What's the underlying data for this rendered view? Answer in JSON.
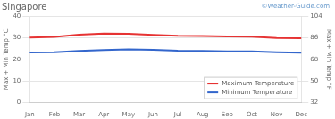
{
  "chart_data": {
    "type": "line",
    "title": "Singapore",
    "annotations": [
      "©Weather-Guide.com"
    ],
    "ylabel": "Max + Min Temp °C",
    "y2label": "Max + Min Temp °F",
    "categories": [
      "Jan",
      "Feb",
      "Mar",
      "Apr",
      "May",
      "Jun",
      "Jul",
      "Aug",
      "Sep",
      "Oct",
      "Nov",
      "Dec"
    ],
    "series": [
      {
        "name": "Maximum Temperature",
        "color": "#e63333",
        "values": [
          30.1,
          30.4,
          31.4,
          31.9,
          31.8,
          31.3,
          30.9,
          30.8,
          30.6,
          30.5,
          29.9,
          29.8
        ]
      },
      {
        "name": "Minimum Temperature",
        "color": "#3366cc",
        "values": [
          23.2,
          23.3,
          23.9,
          24.3,
          24.6,
          24.4,
          24.0,
          23.9,
          23.7,
          23.7,
          23.3,
          23.1
        ]
      }
    ],
    "ylim": [
      0,
      40
    ],
    "yticks": [
      0,
      10,
      20,
      30,
      40
    ],
    "y2lim": [
      32,
      104
    ],
    "y2ticks": [
      32,
      50,
      68,
      86,
      104
    ],
    "grid": true,
    "legend": "lower right"
  }
}
